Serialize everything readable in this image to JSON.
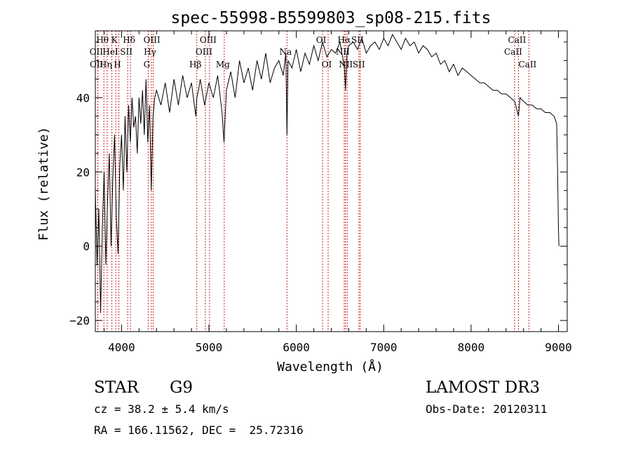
{
  "chart_data": {
    "type": "line",
    "title": "spec-55998-B5599803_sp08-215.fits",
    "xlabel": "Wavelength (Å)",
    "ylabel": "Flux (relative)",
    "xlim": [
      3700,
      9100
    ],
    "ylim": [
      -23,
      58
    ],
    "xticks": [
      4000,
      5000,
      6000,
      7000,
      8000,
      9000
    ],
    "yticks": [
      -20,
      0,
      20,
      40
    ],
    "grid": false,
    "series": [
      {
        "name": "flux",
        "color": "#000000",
        "x": [
          3700,
          3720,
          3740,
          3760,
          3780,
          3800,
          3820,
          3840,
          3860,
          3880,
          3900,
          3920,
          3940,
          3960,
          3980,
          4000,
          4020,
          4040,
          4060,
          4080,
          4100,
          4120,
          4140,
          4160,
          4180,
          4200,
          4220,
          4240,
          4260,
          4280,
          4300,
          4320,
          4340,
          4360,
          4380,
          4400,
          4450,
          4500,
          4550,
          4600,
          4650,
          4700,
          4750,
          4800,
          4850,
          4861,
          4880,
          4900,
          4950,
          5000,
          5050,
          5100,
          5150,
          5172,
          5200,
          5250,
          5300,
          5350,
          5400,
          5450,
          5500,
          5550,
          5600,
          5650,
          5700,
          5750,
          5800,
          5850,
          5880,
          5893,
          5905,
          5950,
          6000,
          6050,
          6100,
          6150,
          6200,
          6250,
          6300,
          6350,
          6400,
          6450,
          6500,
          6550,
          6563,
          6580,
          6600,
          6650,
          6700,
          6750,
          6800,
          6850,
          6900,
          6950,
          7000,
          7050,
          7100,
          7150,
          7200,
          7250,
          7300,
          7350,
          7400,
          7450,
          7500,
          7550,
          7600,
          7650,
          7700,
          7750,
          7800,
          7850,
          7900,
          7950,
          8000,
          8050,
          8100,
          8150,
          8200,
          8250,
          8300,
          8350,
          8400,
          8450,
          8500,
          8542,
          8560,
          8600,
          8650,
          8700,
          8750,
          8800,
          8850,
          8900,
          8950,
          8980,
          8990,
          9000,
          9005
        ],
        "y": [
          15,
          -5,
          10,
          -18,
          5,
          20,
          -5,
          12,
          25,
          0,
          18,
          30,
          8,
          -2,
          22,
          30,
          15,
          35,
          20,
          38,
          28,
          40,
          32,
          35,
          25,
          40,
          33,
          42,
          30,
          45,
          28,
          38,
          15,
          35,
          40,
          42,
          38,
          44,
          36,
          45,
          38,
          46,
          40,
          44,
          35,
          40,
          42,
          45,
          38,
          44,
          40,
          46,
          36,
          28,
          42,
          47,
          40,
          50,
          44,
          48,
          42,
          50,
          45,
          52,
          44,
          48,
          50,
          46,
          52,
          30,
          50,
          48,
          53,
          47,
          52,
          49,
          54,
          50,
          55,
          51,
          53,
          52,
          55,
          48,
          42,
          52,
          54,
          55,
          53,
          56,
          52,
          54,
          55,
          53,
          56,
          54,
          57,
          55,
          53,
          56,
          54,
          55,
          52,
          54,
          53,
          51,
          52,
          49,
          50,
          47,
          49,
          46,
          48,
          47,
          46,
          45,
          44,
          44,
          43,
          42,
          42,
          41,
          41,
          40,
          39,
          35,
          40,
          39,
          38,
          38,
          37,
          37,
          36,
          36,
          35,
          33,
          20,
          5,
          0
        ]
      }
    ],
    "lines": [
      {
        "label": "Hθ",
        "x": 3798,
        "row": 1
      },
      {
        "label": "OII",
        "x": 3727,
        "row": 2
      },
      {
        "label": "OII",
        "x": 3729,
        "row": 3
      },
      {
        "label": "K",
        "x": 3934,
        "row": 1
      },
      {
        "label": "HeI",
        "x": 3889,
        "row": 2
      },
      {
        "label": "Hη",
        "x": 3835,
        "row": 3
      },
      {
        "label": "SII",
        "x": 4070,
        "row": 2
      },
      {
        "label": "H",
        "x": 3969,
        "row": 3
      },
      {
        "label": "Hδ",
        "x": 4102,
        "row": 1
      },
      {
        "label": "OIII",
        "x": 4363,
        "row": 1
      },
      {
        "label": "Hγ",
        "x": 4341,
        "row": 2
      },
      {
        "label": "G",
        "x": 4305,
        "row": 3
      },
      {
        "label": "OIII",
        "x": 5007,
        "row": 1
      },
      {
        "label": "OIII",
        "x": 4959,
        "row": 2
      },
      {
        "label": "Hβ",
        "x": 4861,
        "row": 3
      },
      {
        "label": "Mg",
        "x": 5175,
        "row": 3
      },
      {
        "label": "Na",
        "x": 5893,
        "row": 2
      },
      {
        "label": "OI",
        "x": 6300,
        "row": 1
      },
      {
        "label": "OI",
        "x": 6364,
        "row": 3
      },
      {
        "label": "Hα",
        "x": 6563,
        "row": 1
      },
      {
        "label": "SII",
        "x": 6716,
        "row": 1
      },
      {
        "label": "NII",
        "x": 6548,
        "row": 2
      },
      {
        "label": "NII",
        "x": 6583,
        "row": 3
      },
      {
        "label": "SII",
        "x": 6731,
        "row": 3
      },
      {
        "label": "CaII",
        "x": 8542,
        "row": 1
      },
      {
        "label": "CaII",
        "x": 8498,
        "row": 2
      },
      {
        "label": "CaII",
        "x": 8662,
        "row": 3
      }
    ]
  },
  "info": {
    "object_class": "STAR",
    "subclass": "G9",
    "survey": "LAMOST DR3",
    "cz": "cz = 38.2 ± 5.4 km/s",
    "obs_date": "Obs-Date: 20120311",
    "coords": "RA = 166.11562, DEC =  25.72316"
  }
}
